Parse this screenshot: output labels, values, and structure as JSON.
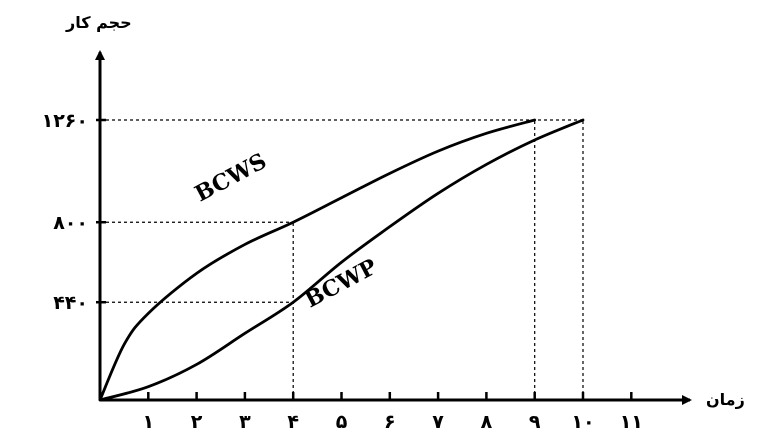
{
  "chart_data": {
    "type": "line",
    "title": "",
    "xlabel": "زمان",
    "ylabel": "حجم کار",
    "xlim": [
      0,
      12
    ],
    "ylim": [
      0,
      1500
    ],
    "x_ticks": [
      {
        "value": 1,
        "label": "۱"
      },
      {
        "value": 2,
        "label": "۲"
      },
      {
        "value": 3,
        "label": "۳"
      },
      {
        "value": 4,
        "label": "۴"
      },
      {
        "value": 5,
        "label": "۵"
      },
      {
        "value": 6,
        "label": "۶"
      },
      {
        "value": 7,
        "label": "۷"
      },
      {
        "value": 8,
        "label": "۸"
      },
      {
        "value": 9,
        "label": "۹"
      },
      {
        "value": 10,
        "label": "۱۰"
      },
      {
        "value": 11,
        "label": "۱۱"
      }
    ],
    "y_ticks": [
      {
        "value": 440,
        "label": "۴۴۰"
      },
      {
        "value": 800,
        "label": "۸۰۰"
      },
      {
        "value": 1260,
        "label": "۱۲۶۰"
      }
    ],
    "series": [
      {
        "name": "BCWS",
        "x": [
          0,
          0.5,
          1,
          2,
          3,
          4,
          5,
          6,
          7,
          8,
          9
        ],
        "y": [
          0,
          250,
          390,
          570,
          700,
          800,
          910,
          1020,
          1120,
          1200,
          1260
        ]
      },
      {
        "name": "BCWP",
        "x": [
          0,
          1,
          2,
          3,
          4,
          5,
          6,
          7,
          8,
          9,
          10
        ],
        "y": [
          0,
          60,
          160,
          300,
          440,
          620,
          780,
          930,
          1060,
          1170,
          1260
        ]
      }
    ],
    "reference_lines": [
      {
        "from": [
          0,
          1260
        ],
        "to": [
          10,
          1260
        ]
      },
      {
        "from": [
          0,
          800
        ],
        "to": [
          4,
          800
        ]
      },
      {
        "from": [
          0,
          440
        ],
        "to": [
          4,
          440
        ]
      },
      {
        "from": [
          4,
          0
        ],
        "to": [
          4,
          800
        ]
      },
      {
        "from": [
          9,
          0
        ],
        "to": [
          9,
          1260
        ]
      },
      {
        "from": [
          10,
          0
        ],
        "to": [
          10,
          1260
        ]
      }
    ],
    "grid": false,
    "legend": "none",
    "colors": {
      "ink": "#000000",
      "background": "#ffffff"
    }
  }
}
